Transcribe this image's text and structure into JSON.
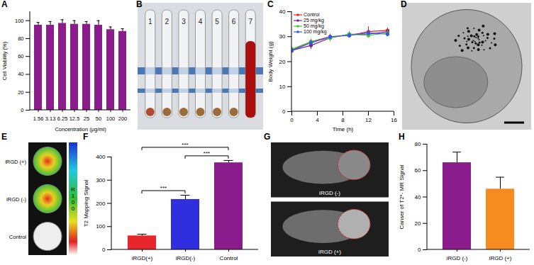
{
  "chart_data": [
    {
      "type": "bar",
      "title": "A",
      "categories": [
        "1.56",
        "3.13",
        "6.25",
        "12.5",
        "25",
        "50",
        "100",
        "200"
      ],
      "values": [
        95,
        95,
        97,
        96,
        96,
        95,
        90,
        88
      ],
      "errors": [
        3,
        4,
        4,
        4,
        3,
        5,
        3,
        3
      ],
      "color": "#8b1c8b",
      "xlabel": "Concentration (μg/ml)",
      "ylabel": "Cell Viability (%)",
      "ylim": [
        0,
        110
      ],
      "yticks": [
        0,
        20,
        40,
        60,
        80,
        100
      ]
    },
    {
      "type": "image",
      "title": "B",
      "labels": [
        "1",
        "2",
        "3",
        "4",
        "5",
        "6",
        "7"
      ]
    },
    {
      "type": "line",
      "title": "C",
      "x": [
        0,
        3,
        6,
        9,
        12,
        15
      ],
      "series": [
        {
          "name": "Control",
          "color": "#e8202a",
          "marker": "circle",
          "values": [
            24.5,
            28,
            30,
            30.5,
            32,
            32.5
          ],
          "errors": [
            0.8,
            1,
            1,
            1,
            2,
            1
          ]
        },
        {
          "name": "25 mg/kg",
          "color": "#8b1c8b",
          "marker": "circle",
          "values": [
            24.5,
            26.5,
            29.5,
            31,
            31,
            32
          ],
          "errors": [
            1,
            1.5,
            1,
            1,
            1.5,
            1
          ]
        },
        {
          "name": "50 mg/kg",
          "color": "#33cc33",
          "marker": "circle",
          "values": [
            25,
            28,
            29.5,
            31,
            30.5,
            31.5
          ],
          "errors": [
            1,
            1,
            1.5,
            1,
            1,
            1
          ]
        },
        {
          "name": "100 mg/kg",
          "color": "#3355ee",
          "marker": "circle",
          "values": [
            24.5,
            27.5,
            30,
            30.5,
            31.5,
            31
          ],
          "errors": [
            1,
            1,
            1,
            1,
            1,
            1
          ]
        }
      ],
      "xlabel": "Time (h)",
      "ylabel": "Body Weight (g)",
      "xlim": [
        0,
        16
      ],
      "xticks": [
        0,
        4,
        8,
        12,
        16
      ],
      "ylim": [
        0,
        40
      ],
      "yticks": [
        0,
        10,
        20,
        30,
        40
      ],
      "legend": "upper left"
    },
    {
      "type": "image",
      "title": "D"
    },
    {
      "type": "image",
      "title": "E",
      "labels": [
        "iRGD (+)",
        "iRGD (-)",
        "Control"
      ],
      "colorbar_labels": [
        "R",
        "1",
        "0",
        "0"
      ]
    },
    {
      "type": "bar",
      "title": "F",
      "categories": [
        "iRGD(+)",
        "iRGD(-)",
        "Control"
      ],
      "values": [
        60,
        217,
        375
      ],
      "errors": [
        7,
        18,
        10
      ],
      "colors": [
        "#e8252a",
        "#2f2fe0",
        "#8b1c8b"
      ],
      "ylabel": "T2 Mapping Signal",
      "ylim": [
        0,
        400
      ],
      "yticks": [
        0,
        100,
        200,
        300,
        400
      ],
      "annotations": [
        {
          "text": "***",
          "from": "iRGD(+)",
          "to": "iRGD(-)"
        },
        {
          "text": "***",
          "from": "iRGD(-)",
          "to": "Control"
        },
        {
          "text": "***",
          "from": "iRGD(+)",
          "to": "Control"
        }
      ]
    },
    {
      "type": "image",
      "title": "G",
      "labels": [
        "iRGD (-)",
        "iRGD (+)"
      ]
    },
    {
      "type": "bar",
      "title": "H",
      "categories": [
        "iRGD (-)",
        "iRGD (+)"
      ],
      "values": [
        66,
        46
      ],
      "errors": [
        8,
        9
      ],
      "colors": [
        "#8b1c8b",
        "#f68b1f"
      ],
      "ylabel": "Canser of T2*- MR Signal",
      "ylim": [
        0,
        80
      ],
      "yticks": [
        0,
        20,
        40,
        60,
        80
      ]
    }
  ]
}
